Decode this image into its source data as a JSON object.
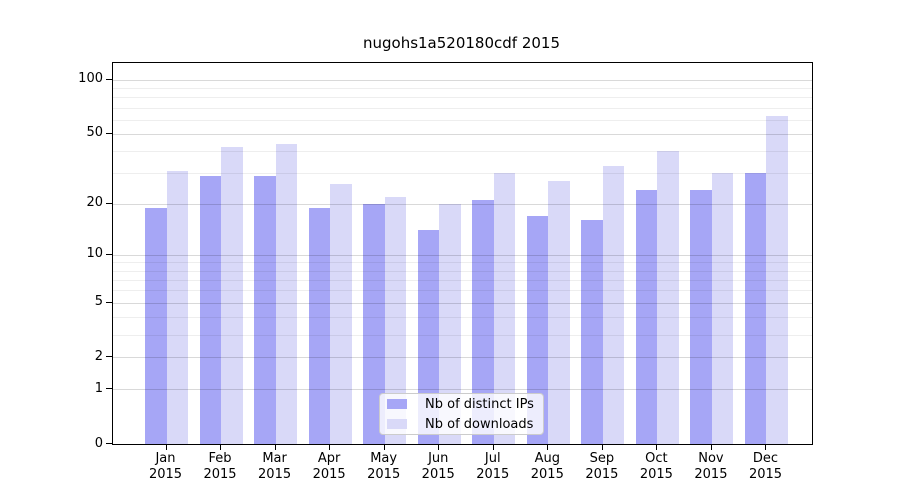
{
  "title": "nugohs1a520180cdf 2015",
  "chart_data": {
    "type": "bar",
    "title": "nugohs1a520180cdf 2015",
    "yscale": "log1p",
    "ylim": [
      0,
      124
    ],
    "grid": true,
    "legend_position": "bottom-center",
    "y_ticks": [
      0,
      1,
      2,
      5,
      10,
      20,
      50,
      100
    ],
    "y_minor_gridlines": [
      3,
      4,
      6,
      7,
      8,
      9,
      30,
      40,
      60,
      70,
      80,
      90
    ],
    "categories": [
      "Jan",
      "Feb",
      "Mar",
      "Apr",
      "May",
      "Jun",
      "Jul",
      "Aug",
      "Sep",
      "Oct",
      "Nov",
      "Dec"
    ],
    "x_year": "2015",
    "series": [
      {
        "name": "Nb of distinct IPs",
        "color": "#a6a6f6",
        "values": [
          19,
          29,
          29,
          19,
          20,
          14,
          21,
          17,
          16,
          24,
          24,
          30
        ]
      },
      {
        "name": "Nb of downloads",
        "color": "#d9d9f8",
        "values": [
          31,
          42,
          44,
          26,
          22,
          20,
          30,
          27,
          33,
          40,
          30,
          63
        ]
      }
    ]
  },
  "legend": {
    "items": [
      {
        "label": "Nb of distinct IPs",
        "color": "#a6a6f6"
      },
      {
        "label": "Nb of downloads",
        "color": "#d9d9f8"
      }
    ]
  },
  "colors": {
    "bar_distinct_ips": "#a6a6f6",
    "bar_downloads": "#d9d9f8",
    "grid_major": "#d9d9d9",
    "grid_minor": "#eeeeee",
    "axis": "#000000",
    "background": "#ffffff"
  }
}
